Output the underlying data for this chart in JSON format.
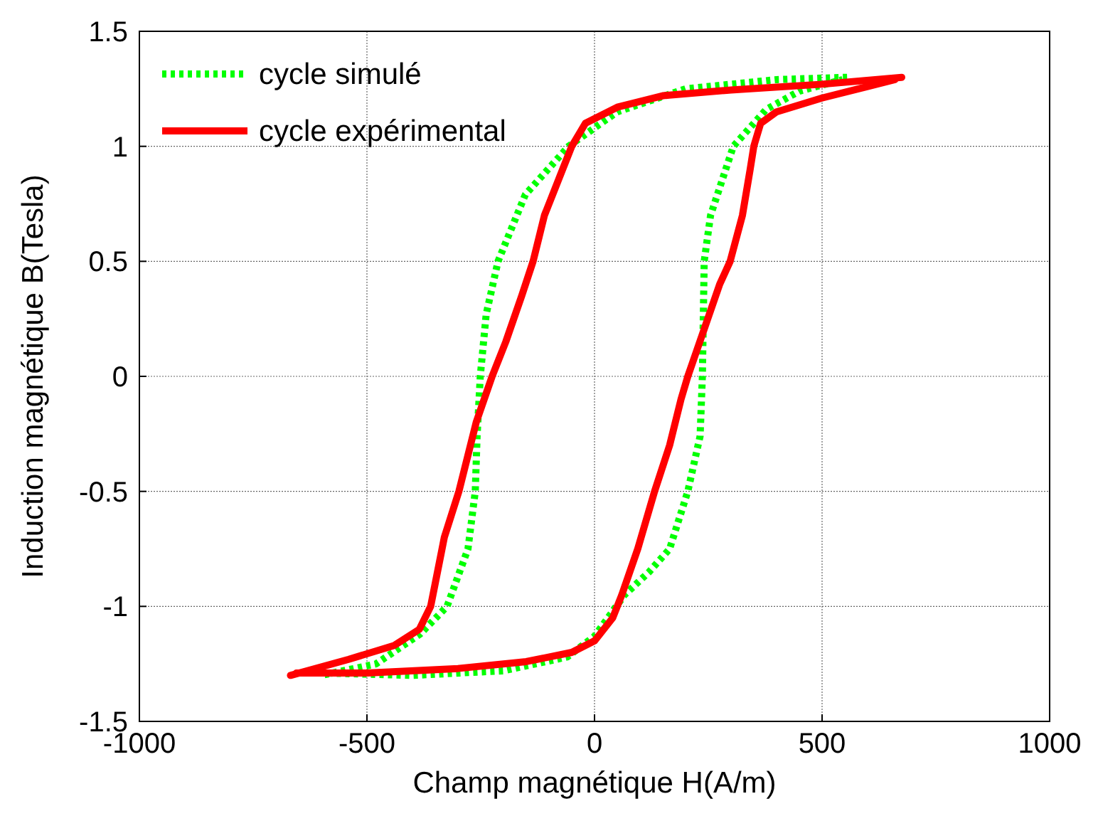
{
  "chart_data": {
    "type": "line",
    "xlabel": "Champ magnétique H(A/m)",
    "ylabel": "Induction magnétique B(Tesla)",
    "xlim": [
      -1000,
      1000
    ],
    "xticks": [
      -1000,
      -500,
      0,
      500,
      1000
    ],
    "ylim": [
      -1.5,
      1.5
    ],
    "yticks": [
      -1.5,
      -1,
      -0.5,
      0,
      0.5,
      1,
      1.5
    ],
    "grid": true,
    "legend": "top left",
    "marker": "none",
    "series": [
      {
        "name": "cycle simulé",
        "color": "#00ff00",
        "line_style": "dotted",
        "x": [
          555,
          400,
          200,
          50,
          0,
          -57,
          -152,
          -212,
          -238,
          -251,
          -258,
          -262,
          -278,
          -324,
          -383,
          -480,
          -600
        ],
        "values": [
          1.3,
          1.29,
          1.25,
          1.15,
          1.08,
          1.0,
          0.79,
          0.5,
          0.27,
          0,
          -0.26,
          -0.5,
          -0.75,
          -1.0,
          -1.12,
          -1.25,
          -1.3
        ]
      },
      {
        "color": "#00ff00",
        "line_style": "dotted",
        "x": [
          -585,
          -400,
          -200,
          -60,
          0,
          66,
          120,
          165,
          205,
          232,
          237,
          241,
          255,
          270,
          305,
          377,
          450,
          545
        ],
        "values": [
          -1.29,
          -1.3,
          -1.28,
          -1.22,
          -1.13,
          -0.95,
          -0.85,
          -0.75,
          -0.5,
          -0.26,
          0,
          0.5,
          0.7,
          0.79,
          1.0,
          1.16,
          1.24,
          1.29
        ]
      },
      {
        "name": "cycle expérimental",
        "color": "#ff0000",
        "line_style": "solid",
        "x": [
          675,
          500,
          300,
          150,
          50,
          -20,
          -50,
          -80,
          -110,
          -135,
          -160,
          -195,
          -225,
          -260,
          -298,
          -330,
          -350,
          -360,
          -385,
          -440,
          -540,
          -668
        ],
        "values": [
          1.3,
          1.27,
          1.245,
          1.22,
          1.17,
          1.1,
          1.0,
          0.85,
          0.7,
          0.5,
          0.35,
          0.15,
          0,
          -0.2,
          -0.5,
          -0.7,
          -0.9,
          -1.0,
          -1.1,
          -1.17,
          -1.23,
          -1.3
        ]
      },
      {
        "color": "#ff0000",
        "line_style": "solid",
        "x": [
          -655,
          -500,
          -300,
          -150,
          -50,
          0,
          40,
          60,
          95,
          132,
          165,
          190,
          205,
          240,
          275,
          298,
          325,
          342,
          350,
          365,
          400,
          500,
          600,
          660
        ],
        "values": [
          -1.29,
          -1.29,
          -1.27,
          -1.24,
          -1.2,
          -1.15,
          -1.05,
          -0.95,
          -0.75,
          -0.5,
          -0.3,
          -0.1,
          0,
          0.2,
          0.4,
          0.5,
          0.7,
          0.9,
          1.0,
          1.1,
          1.15,
          1.21,
          1.26,
          1.29
        ]
      }
    ]
  }
}
